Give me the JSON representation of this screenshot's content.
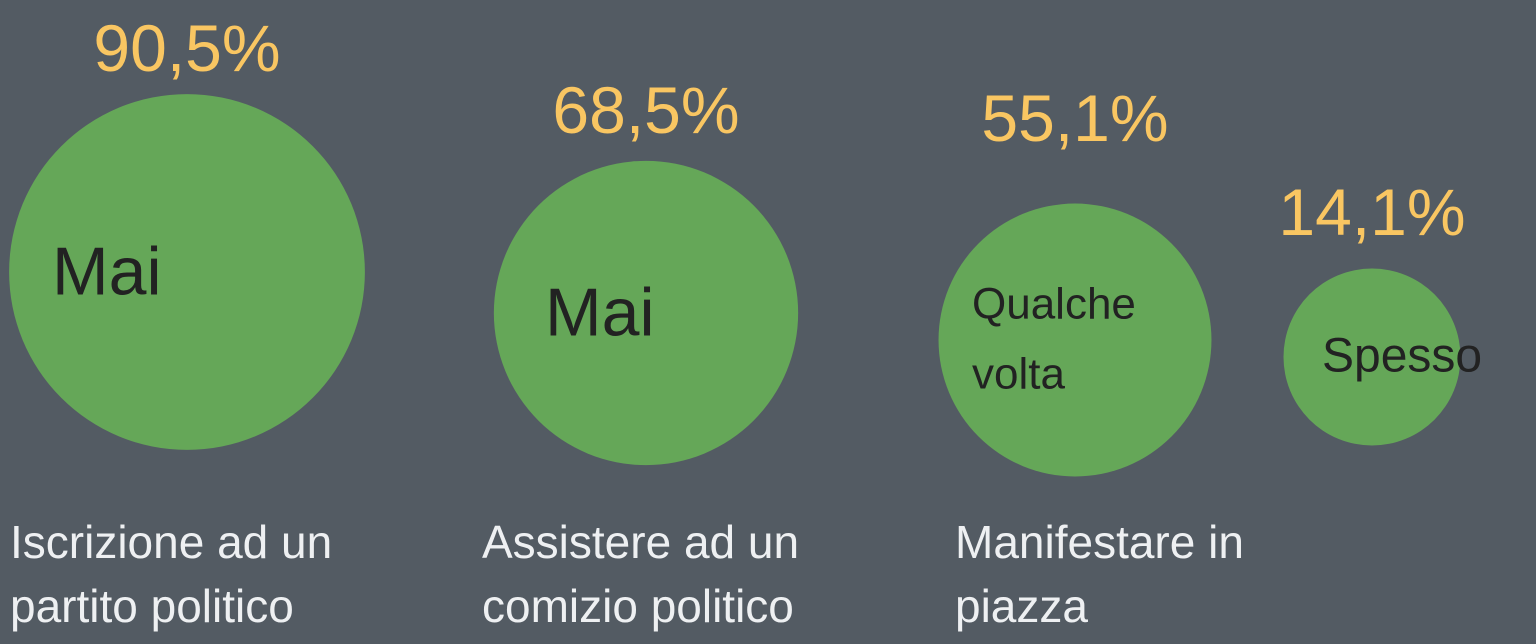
{
  "chart_data": {
    "type": "bubble",
    "categories": [
      "Mai",
      "Mai",
      "Qualche volta",
      "Spesso"
    ],
    "values": [
      90.5,
      68.5,
      55.1,
      14.1
    ],
    "value_labels": [
      "90,5%",
      "68,5%",
      "55,1%",
      "14,1%"
    ],
    "groups": [
      "Iscrizione ad un partito politico",
      "Assistere ad un comizio politico",
      "Manifestare in piazza"
    ],
    "color": "#65a758"
  }
}
